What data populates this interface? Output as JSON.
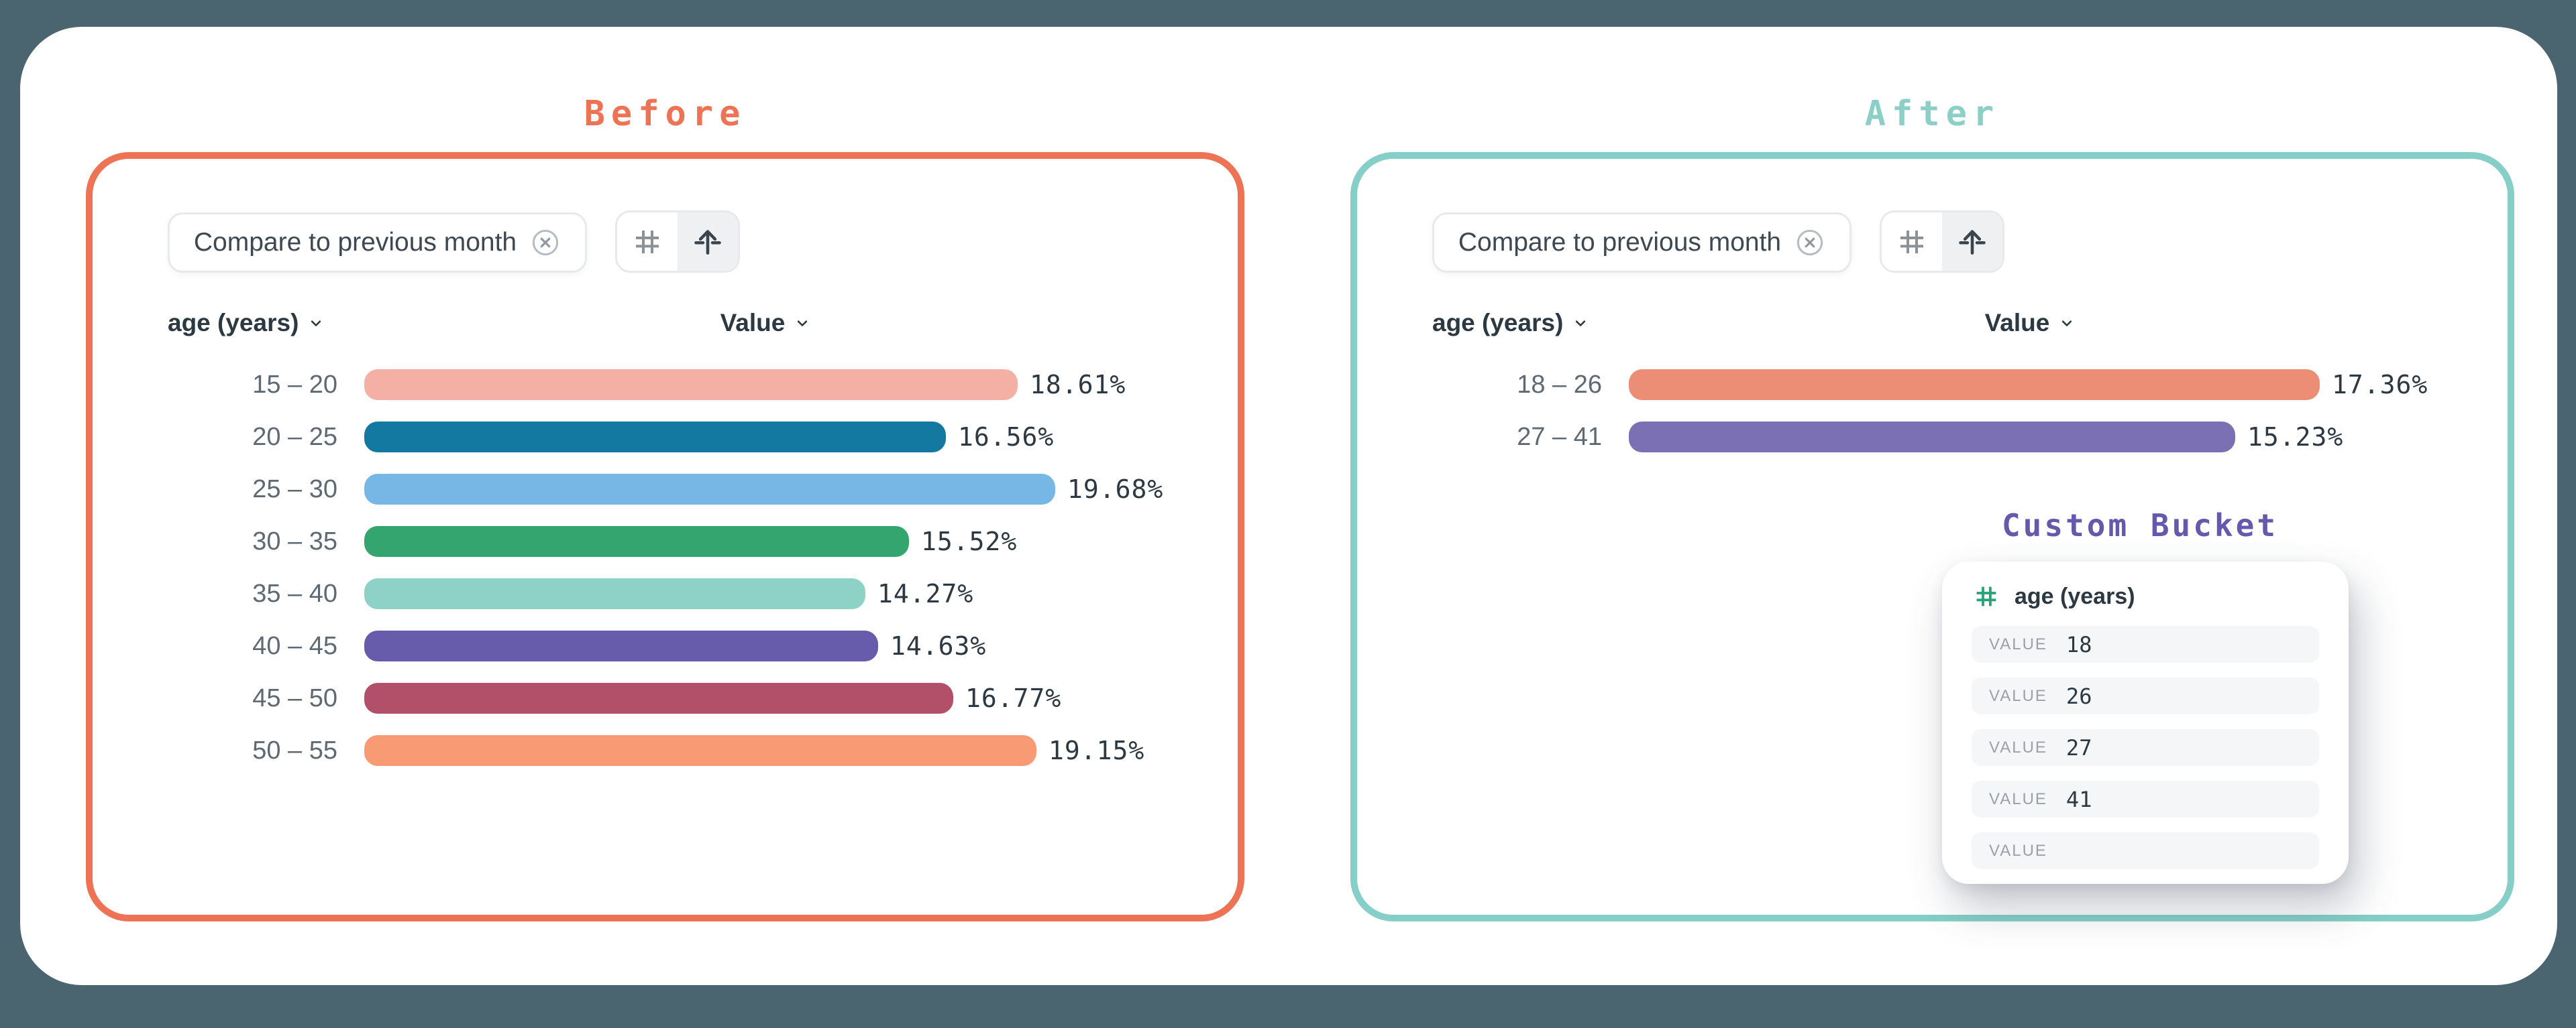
{
  "panels": [
    {
      "title": "Before",
      "accent_color": "#ee7254",
      "filter_chip": {
        "label": "Compare to previous month"
      },
      "columns": {
        "dimension": "age (years)",
        "value": "Value"
      }
    },
    {
      "title": "After",
      "accent_color": "#85cfc8",
      "filter_chip": {
        "label": "Compare to previous month"
      },
      "columns": {
        "dimension": "age (years)",
        "value": "Value"
      },
      "custom_bucket": {
        "title": "Custom Bucket",
        "title_color": "#6459ad",
        "field_label": "age (years)",
        "rows": [
          {
            "label": "VALUE",
            "value": "18"
          },
          {
            "label": "VALUE",
            "value": "26"
          },
          {
            "label": "VALUE",
            "value": "27"
          },
          {
            "label": "VALUE",
            "value": "41"
          },
          {
            "label": "VALUE",
            "value": ""
          }
        ]
      }
    }
  ],
  "chart_data": [
    {
      "type": "bar",
      "orientation": "horizontal",
      "title": "Before",
      "xlabel": "Value",
      "ylabel": "age (years)",
      "xlim": [
        0,
        19.68
      ],
      "categories": [
        "15 – 20",
        "20 – 25",
        "25 – 30",
        "30 – 35",
        "35 – 40",
        "40 – 45",
        "45 – 50",
        "50 – 55"
      ],
      "values": [
        18.61,
        16.56,
        19.68,
        15.52,
        14.27,
        14.63,
        16.77,
        19.15
      ],
      "labels": [
        "18.61%",
        "16.56%",
        "19.68%",
        "15.52%",
        "14.27%",
        "14.63%",
        "16.77%",
        "19.15%"
      ],
      "colors": [
        "#f5b0a5",
        "#1479a0",
        "#76b7e6",
        "#35a56f",
        "#8ed1c6",
        "#675bac",
        "#b25069",
        "#f89b74"
      ]
    },
    {
      "type": "bar",
      "orientation": "horizontal",
      "title": "After",
      "xlabel": "Value",
      "ylabel": "age (years)",
      "xlim": [
        0,
        17.36
      ],
      "categories": [
        "18 – 26",
        "27 – 41"
      ],
      "values": [
        17.36,
        15.23
      ],
      "labels": [
        "17.36%",
        "15.23%"
      ],
      "colors": [
        "#ec8e75",
        "#7b70b4"
      ]
    }
  ]
}
